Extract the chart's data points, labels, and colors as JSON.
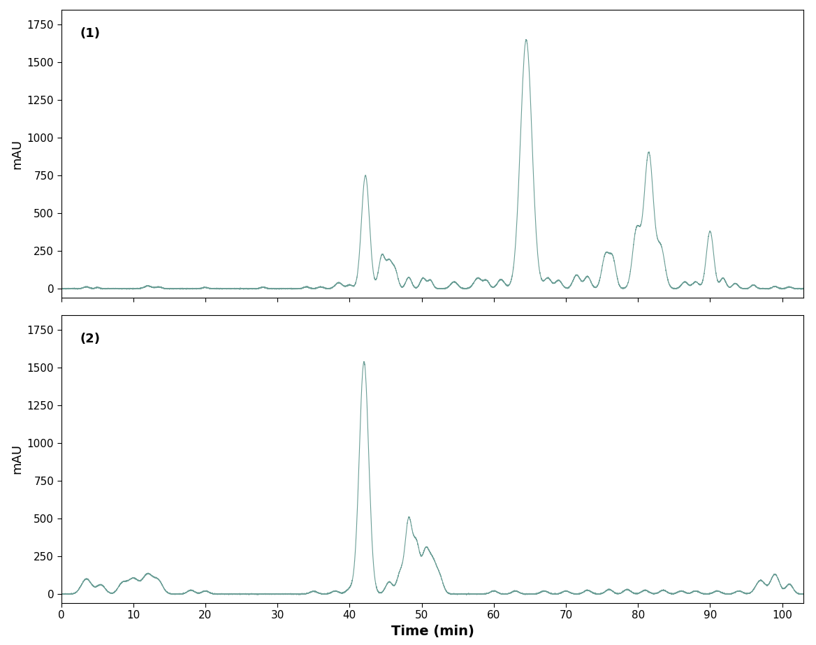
{
  "line_color": "#6b9e96",
  "background_color": "#ffffff",
  "label1": "(1)",
  "label2": "(2)",
  "xlabel": "Time (min)",
  "ylabel": "mAU",
  "xlim": [
    0,
    103
  ],
  "ylim1": [
    -60,
    1850
  ],
  "ylim2": [
    -60,
    1850
  ],
  "yticks": [
    0,
    250,
    500,
    750,
    1000,
    1250,
    1500,
    1750
  ],
  "xticks": [
    0,
    10,
    20,
    30,
    40,
    50,
    60,
    70,
    80,
    90,
    100
  ],
  "figsize": [
    11.68,
    9.23
  ],
  "dpi": 100,
  "label_fontsize": 13,
  "tick_fontsize": 11,
  "panel_label_fontsize": 13,
  "linewidth": 0.8,
  "title_fontweight": "bold"
}
